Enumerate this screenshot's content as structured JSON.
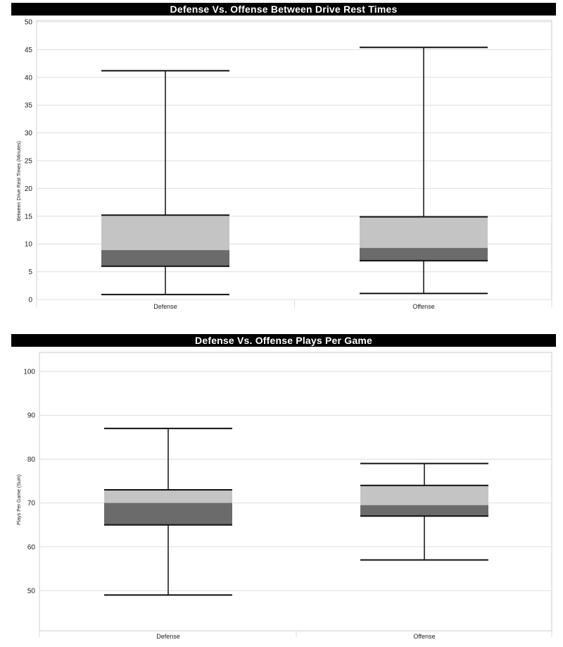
{
  "chart_data": [
    {
      "type": "boxplot",
      "title": "Defense Vs. Offense Between Drive Rest Times",
      "xlabel": "",
      "ylabel": "Between Drive Rest Times (Minutes)",
      "ylim": [
        0,
        50
      ],
      "yticks": [
        0,
        5,
        10,
        15,
        20,
        25,
        30,
        35,
        40,
        45,
        50
      ],
      "grid": true,
      "categories": [
        "Defense",
        "Offense"
      ],
      "boxes": [
        {
          "name": "Defense",
          "min": 0.9,
          "q1": 6.0,
          "median": 8.9,
          "q3": 15.2,
          "max": 41.2
        },
        {
          "name": "Offense",
          "min": 1.1,
          "q1": 7.0,
          "median": 9.3,
          "q3": 14.9,
          "max": 45.4
        }
      ]
    },
    {
      "type": "boxplot",
      "title": "Defense Vs. Offense Plays Per Game",
      "xlabel": "",
      "ylabel": "Plays Per Game (Sum)",
      "ylim": [
        43,
        104
      ],
      "yticks": [
        50,
        60,
        70,
        80,
        90,
        100
      ],
      "grid": true,
      "categories": [
        "Defense",
        "Offense"
      ],
      "boxes": [
        {
          "name": "Defense",
          "min": 49,
          "q1": 65,
          "median": 70,
          "q3": 73,
          "max": 87
        },
        {
          "name": "Offense",
          "min": 57,
          "q1": 67,
          "median": 69.5,
          "q3": 74,
          "max": 79
        }
      ]
    }
  ],
  "colors": {
    "upper_box": "#c4c4c4",
    "lower_box": "#6b6b6b",
    "grid": "#dddddd",
    "frame": "#cccccc",
    "title_bg": "#000000",
    "title_fg": "#ffffff"
  }
}
